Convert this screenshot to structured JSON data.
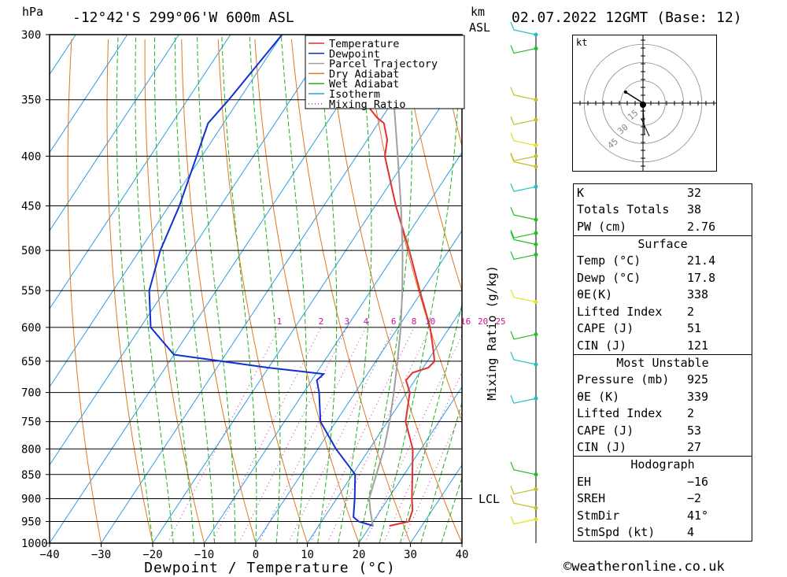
{
  "header": {
    "pressure_unit": "hPa",
    "location": "-12°42'S  299°06'W  600m  ASL",
    "km_label": "km",
    "asl_label": "ASL",
    "datetime": "02.07.2022  12GMT  (Base: 12)"
  },
  "chart_data": {
    "type": "line",
    "xlabel": "Dewpoint / Temperature (°C)",
    "ylabel": "Mixing Ratio (g/kg)",
    "x_ticks": [
      "-40",
      "-30",
      "-20",
      "-10",
      "0",
      "10",
      "20",
      "30",
      "40"
    ],
    "pressure_ticks": [
      "300",
      "350",
      "400",
      "450",
      "500",
      "550",
      "600",
      "650",
      "700",
      "750",
      "800",
      "850",
      "900",
      "950",
      "1000"
    ],
    "xlim": [
      -40,
      40
    ],
    "plim": [
      1000,
      300
    ],
    "lcl_label": "LCL",
    "lcl_pressure": 900,
    "mixing_ratio_labels": [
      "1",
      "2",
      "3",
      "4",
      "6",
      "8",
      "10",
      "16",
      "20",
      "25"
    ],
    "legend": [
      "Temperature",
      "Dewpoint",
      "Parcel Trajectory",
      "Dry Adiabat",
      "Wet Adiabat",
      "Isotherm",
      "Mixing Ratio"
    ],
    "series": [
      {
        "name": "Temperature",
        "color": "#e03030",
        "points": [
          [
            960,
            23.7
          ],
          [
            950,
            26.9
          ],
          [
            925,
            26.2
          ],
          [
            900,
            24.6
          ],
          [
            850,
            21.6
          ],
          [
            800,
            18.4
          ],
          [
            750,
            13.5
          ],
          [
            700,
            10.6
          ],
          [
            680,
            8.3
          ],
          [
            668,
            8.6
          ],
          [
            660,
            11.0
          ],
          [
            650,
            11.4
          ],
          [
            630,
            9.4
          ],
          [
            600,
            6.2
          ],
          [
            550,
            -0.5
          ],
          [
            500,
            -7.7
          ],
          [
            450,
            -16
          ],
          [
            400,
            -24.5
          ],
          [
            385,
            -26.1
          ],
          [
            370,
            -28.9
          ],
          [
            365,
            -31
          ],
          [
            350,
            -36
          ],
          [
            300,
            -46
          ]
        ]
      },
      {
        "name": "Dewpoint",
        "color": "#1030d0",
        "points": [
          [
            960,
            20.6
          ],
          [
            950,
            17.2
          ],
          [
            940,
            15.6
          ],
          [
            900,
            13.5
          ],
          [
            850,
            10.5
          ],
          [
            800,
            3.5
          ],
          [
            750,
            -3
          ],
          [
            700,
            -7
          ],
          [
            680,
            -9
          ],
          [
            670,
            -8.5
          ],
          [
            660,
            -20
          ],
          [
            640,
            -40
          ],
          [
            600,
            -48
          ],
          [
            550,
            -53
          ],
          [
            500,
            -56
          ],
          [
            450,
            -58
          ],
          [
            400,
            -61
          ],
          [
            370,
            -63
          ],
          [
            350,
            -62
          ],
          [
            300,
            -60
          ]
        ]
      },
      {
        "name": "Parcel Trajectory",
        "color": "#a0a0a0",
        "points": [
          [
            960,
            20.5
          ],
          [
            950,
            19.8
          ],
          [
            925,
            18.0
          ],
          [
            900,
            16.3
          ],
          [
            850,
            14.6
          ],
          [
            800,
            12.8
          ],
          [
            750,
            10.4
          ],
          [
            700,
            7.5
          ],
          [
            650,
            4.2
          ],
          [
            600,
            0.5
          ],
          [
            550,
            -3.9
          ],
          [
            500,
            -9
          ],
          [
            450,
            -15
          ],
          [
            400,
            -22
          ],
          [
            350,
            -30
          ],
          [
            300,
            -40
          ]
        ]
      }
    ],
    "wind_barbs": [
      {
        "p": 300,
        "color": "#20c0c0"
      },
      {
        "p": 310,
        "color": "#20c020"
      },
      {
        "p": 350,
        "color": "#c0c020"
      },
      {
        "p": 367,
        "color": "#c0c020"
      },
      {
        "p": 390,
        "color": "#e0e020"
      },
      {
        "p": 400,
        "color": "#c0c020"
      },
      {
        "p": 410,
        "color": "#c0c020"
      },
      {
        "p": 430,
        "color": "#20c0c0"
      },
      {
        "p": 465,
        "color": "#20c020"
      },
      {
        "p": 480,
        "color": "#20c020"
      },
      {
        "p": 493,
        "color": "#20c020"
      },
      {
        "p": 505,
        "color": "#20c020"
      },
      {
        "p": 565,
        "color": "#e0e020"
      },
      {
        "p": 610,
        "color": "#20c020"
      },
      {
        "p": 655,
        "color": "#20c0c0"
      },
      {
        "p": 710,
        "color": "#20c0c0"
      },
      {
        "p": 850,
        "color": "#20c020"
      },
      {
        "p": 880,
        "color": "#c0c020"
      },
      {
        "p": 920,
        "color": "#c0c020"
      },
      {
        "p": 945,
        "color": "#e0e020"
      }
    ]
  },
  "hodograph": {
    "unit": "kt",
    "ring_labels": [
      "15",
      "30",
      "45"
    ]
  },
  "indices": {
    "rows": [
      {
        "k": "K",
        "v": "32"
      },
      {
        "k": "Totals Totals",
        "v": "38"
      },
      {
        "k": "PW (cm)",
        "v": "2.76"
      }
    ]
  },
  "surface": {
    "title": "Surface",
    "rows": [
      {
        "k": "Temp (°C)",
        "v": "21.4"
      },
      {
        "k": "Dewp (°C)",
        "v": "17.8"
      },
      {
        "k": "θE(K)",
        "v": "338"
      },
      {
        "k": "Lifted Index",
        "v": "2"
      },
      {
        "k": "CAPE (J)",
        "v": "51"
      },
      {
        "k": "CIN (J)",
        "v": "121"
      }
    ]
  },
  "most_unstable": {
    "title": "Most Unstable",
    "rows": [
      {
        "k": "Pressure (mb)",
        "v": "925"
      },
      {
        "k": "θE (K)",
        "v": "339"
      },
      {
        "k": "Lifted Index",
        "v": "2"
      },
      {
        "k": "CAPE (J)",
        "v": "53"
      },
      {
        "k": "CIN (J)",
        "v": "27"
      }
    ]
  },
  "hodo_table": {
    "title": "Hodograph",
    "rows": [
      {
        "k": "EH",
        "v": "-16"
      },
      {
        "k": "SREH",
        "v": "-2"
      },
      {
        "k": "StmDir",
        "v": "41°"
      },
      {
        "k": "StmSpd (kt)",
        "v": "4"
      }
    ]
  },
  "footer": {
    "copyright": "©weatheronline.co.uk"
  }
}
